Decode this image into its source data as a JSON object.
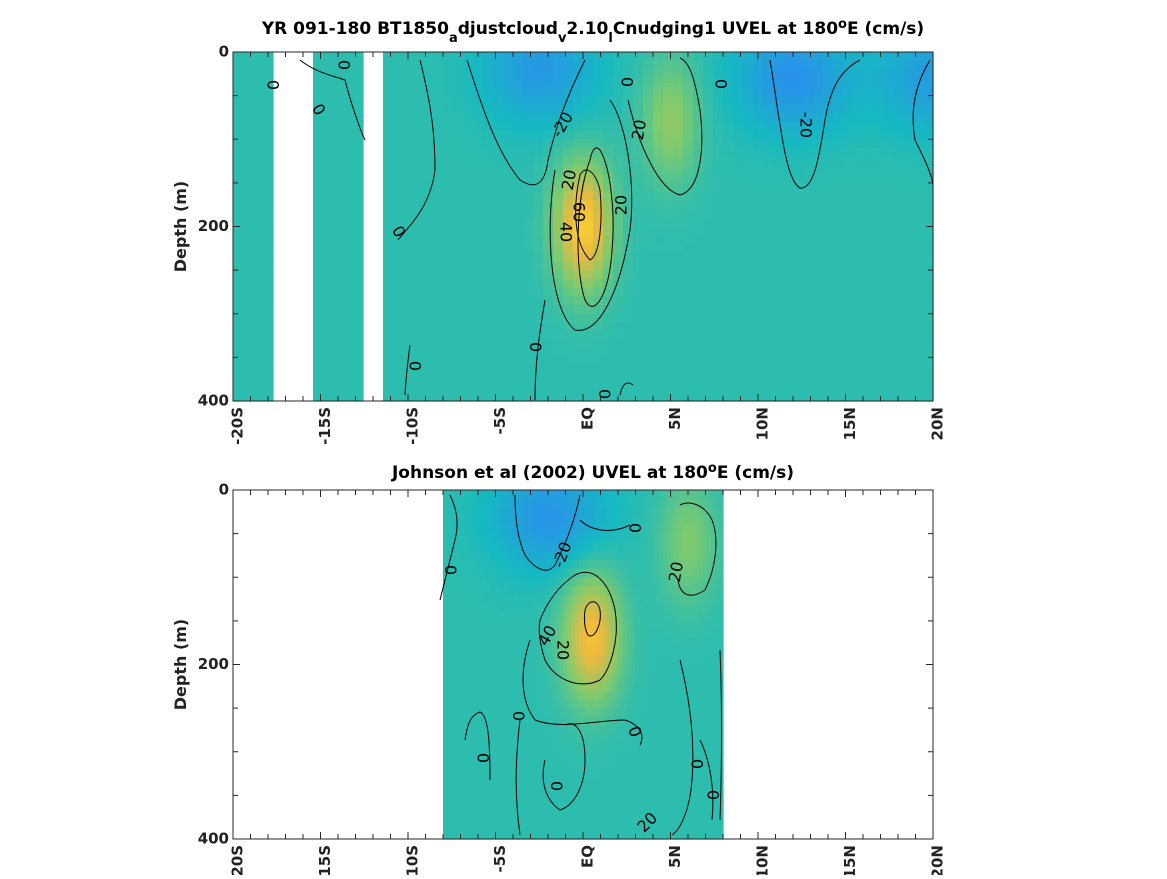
{
  "chart_data": [
    {
      "type": "heatmap",
      "title_parts": [
        "YR 091-180 BT1850",
        "a",
        "djustcloud",
        "v",
        "2.10",
        "l",
        "Cnudging1 UVEL at 180",
        "o",
        "E (cm/s)"
      ],
      "ylabel": "Depth (m)",
      "xlim": [
        -20,
        20
      ],
      "ylim": [
        400,
        0
      ],
      "x_ticks": [
        -20,
        -15,
        -10,
        -5,
        0,
        5,
        10,
        15,
        20
      ],
      "x_tick_labels": [
        "-20S",
        "-15S",
        "-10S",
        "-5S",
        "EQ",
        "5N",
        "10N",
        "15N",
        "20N"
      ],
      "y_ticks": [
        0,
        200,
        400
      ],
      "y_tick_labels": [
        "0",
        "200",
        "400"
      ],
      "colormap": [
        "#3e26a8",
        "#2e87f7",
        "#16b9c1",
        "#7ecb6e",
        "#f0b93e",
        "#fbe925"
      ],
      "clim": [
        -60,
        80
      ],
      "contour_levels": [
        -20,
        0,
        20,
        40,
        60
      ],
      "features": [
        {
          "kind": "jet",
          "x": 0.0,
          "depth": 200,
          "peak": 62
        },
        {
          "kind": "jet",
          "x": 5.0,
          "depth": 80,
          "peak": 27
        },
        {
          "kind": "current",
          "x": -2.5,
          "depth": 20,
          "peak": -24
        },
        {
          "kind": "current",
          "x": 12.0,
          "depth": 30,
          "peak": -28
        },
        {
          "kind": "current",
          "x": 20.0,
          "depth": 30,
          "peak": -22
        }
      ],
      "gaps": [
        [
          -17.5,
          -15.5
        ],
        [
          -12.3,
          -11.5
        ]
      ],
      "contour_labels": [
        "0",
        "0",
        "0",
        "0",
        "-20",
        "-20",
        "20",
        "20",
        "20",
        "40",
        "60",
        "0",
        "0",
        "0",
        "0",
        "0"
      ]
    },
    {
      "type": "heatmap",
      "title_parts": [
        "Johnson et al (2002) UVEL at 180",
        "o",
        "E (cm/s)"
      ],
      "ylabel": "Depth (m)",
      "xlim": [
        -20,
        20
      ],
      "ylim": [
        400,
        0
      ],
      "x_ticks": [
        -20,
        -15,
        -10,
        -5,
        0,
        5,
        10,
        15,
        20
      ],
      "x_tick_labels": [
        "-20S",
        "-15S",
        "-10S",
        "-5S",
        "EQ",
        "5N",
        "10N",
        "15N",
        "20N"
      ],
      "y_ticks": [
        0,
        200,
        400
      ],
      "y_tick_labels": [
        "0",
        "200",
        "400"
      ],
      "colormap": [
        "#3e26a8",
        "#2e87f7",
        "#16b9c1",
        "#7ecb6e",
        "#f0b93e",
        "#fbe925"
      ],
      "clim": [
        -60,
        80
      ],
      "contour_levels": [
        -20,
        0,
        20,
        40
      ],
      "data_extent_x": [
        -8,
        8
      ],
      "features": [
        {
          "kind": "jet",
          "x": 0.5,
          "depth": 170,
          "peak": 55
        },
        {
          "kind": "jet",
          "x": 6.0,
          "depth": 60,
          "peak": 22
        },
        {
          "kind": "current",
          "x": -2.0,
          "depth": 30,
          "peak": -26
        }
      ],
      "contour_labels": [
        "0",
        "-20",
        "20",
        "40",
        "20",
        "0",
        "0",
        "0",
        "0",
        "0",
        "0",
        "0",
        "20"
      ]
    }
  ]
}
